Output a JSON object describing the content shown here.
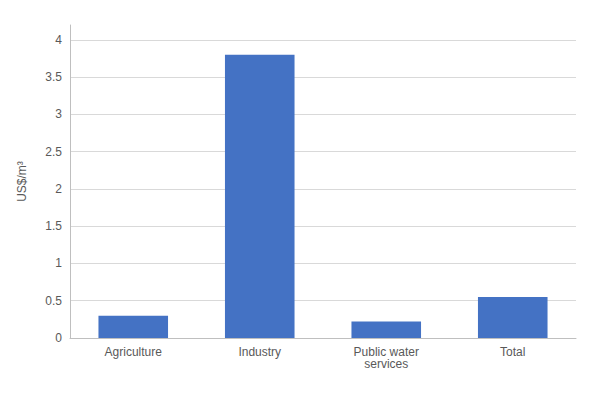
{
  "chart_data": {
    "type": "bar",
    "categories": [
      "Agriculture",
      "Industry",
      "Public water\nservices",
      "Total"
    ],
    "values": [
      0.3,
      3.8,
      0.22,
      0.55
    ],
    "color": "#4472C4",
    "ylabel": "US$/m³",
    "ylim": [
      0,
      4.2
    ],
    "yticks": [
      0,
      0.5,
      1,
      1.5,
      2,
      2.5,
      3,
      3.5,
      4
    ],
    "grid": true
  }
}
